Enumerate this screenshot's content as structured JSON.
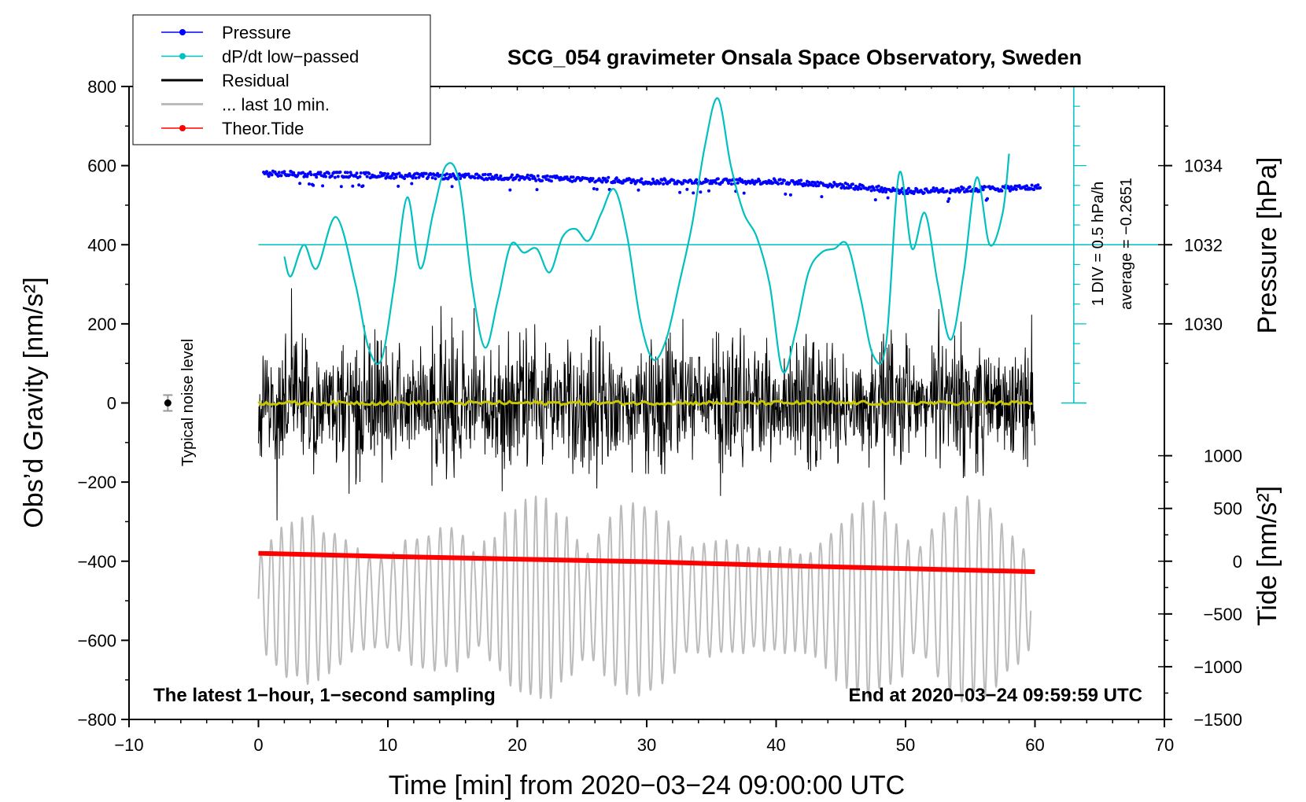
{
  "chart_data": {
    "type": "line",
    "title": "SCG_054 gravimeter Onsala Space Observatory, Sweden",
    "xlabel": "Time [min] from 2020−03−24 09:00:00 UTC",
    "ylabel_left": "Obs’d Gravity [nm/s²]",
    "ylabel_right_pressure": "Pressure [hPa]",
    "ylabel_right_tide": "Tide [nm/s²]",
    "xlim": [
      -10,
      70
    ],
    "ylim": [
      -800,
      800
    ],
    "x_ticks": [
      -10,
      0,
      10,
      20,
      30,
      40,
      50,
      60,
      70
    ],
    "x_tick_labels": [
      "−10",
      "0",
      "10",
      "20",
      "30",
      "40",
      "50",
      "60",
      "70"
    ],
    "y_ticks": [
      -800,
      -600,
      -400,
      -200,
      0,
      200,
      400,
      600,
      800
    ],
    "y_tick_labels": [
      "−800",
      "−600",
      "−400",
      "−200",
      "0",
      "200",
      "400",
      "600",
      "800"
    ],
    "pressure_axis": {
      "gravity_at_1032": 400,
      "hpa_per_200": 2,
      "ticks": [
        1030,
        1032,
        1034
      ],
      "tick_labels": [
        "1030",
        "1032",
        "1034"
      ]
    },
    "tide_axis": {
      "gravity_at_zero": -400,
      "tide_per_gravity": 3.75,
      "ticks": [
        -1500,
        -1000,
        -500,
        0,
        500,
        1000
      ],
      "tick_labels": [
        "−1500",
        "−1000",
        "−500",
        "0",
        "500",
        "1000"
      ]
    },
    "dpdt_scale": {
      "label_div": "1 DIV = 0.5 hPa/h",
      "label_avg": "average = −0.2651",
      "baseline_gravity": 400,
      "x_position": 63
    },
    "legend": [
      {
        "name": "Pressure",
        "color": "#0000ff",
        "marker": true
      },
      {
        "name": "dP/dt low−passed",
        "color": "#00c0c0",
        "marker": true
      },
      {
        "name": "Residual",
        "color": "#000000",
        "marker": false
      },
      {
        "name": "... last 10 min.",
        "color": "#bbbbbb",
        "marker": false
      },
      {
        "name": "Theor.Tide",
        "color": "#ff0000",
        "marker": true
      }
    ],
    "series": [
      {
        "name": "Pressure",
        "unit": "hPa",
        "color": "#0000ff",
        "x": [
          0,
          10,
          20,
          30,
          40,
          45,
          50,
          55,
          60
        ],
        "values": [
          1033.8,
          1033.75,
          1033.7,
          1033.6,
          1033.6,
          1033.5,
          1033.35,
          1033.4,
          1033.45
        ]
      },
      {
        "name": "dP/dt low−passed",
        "unit": "gravity-units",
        "color": "#00c0c0",
        "x": [
          2,
          2.5,
          3.5,
          4.5,
          6,
          7.5,
          8.5,
          9.5,
          10.5,
          11.5,
          12.5,
          13.5,
          14.5,
          15.5,
          16.5,
          17.5,
          18.5,
          19.5,
          20.5,
          21.5,
          22.5,
          23.5,
          24.5,
          25.5,
          26.5,
          27.5,
          28.5,
          29.5,
          30.5,
          31.5,
          32.5,
          33.5,
          34.5,
          35.5,
          36.5,
          37.5,
          38.5,
          39.5,
          40.5,
          41.5,
          42.5,
          43.5,
          44.5,
          45.5,
          46.5,
          47.5,
          48.5,
          49.5,
          50.5,
          51.5,
          52.5,
          53.5,
          54.5,
          55.5,
          56.5,
          57.5,
          58
        ],
        "values": [
          370,
          320,
          400,
          340,
          470,
          300,
          140,
          110,
          300,
          520,
          340,
          480,
          600,
          560,
          300,
          140,
          260,
          400,
          380,
          390,
          330,
          420,
          440,
          410,
          480,
          540,
          420,
          210,
          110,
          160,
          300,
          450,
          650,
          770,
          600,
          480,
          420,
          300,
          80,
          180,
          330,
          380,
          390,
          400,
          270,
          120,
          150,
          580,
          390,
          480,
          300,
          160,
          330,
          570,
          400,
          480,
          630
        ]
      },
      {
        "name": "Residual",
        "unit": "nm/s²",
        "color": "#000000",
        "x": [
          0,
          10,
          20,
          30,
          40,
          50,
          60
        ],
        "values": [
          0,
          0,
          0,
          0,
          0,
          0,
          0
        ],
        "amplitude_range": [
          -340,
          290
        ]
      },
      {
        "name": "... last 10 min.",
        "unit": "nm/s²",
        "color": "#bbbbbb",
        "x": [
          0,
          10,
          20,
          30,
          40,
          50,
          60
        ],
        "values": [
          -500,
          -500,
          -500,
          -500,
          -500,
          -500,
          -500
        ],
        "amplitude_range": [
          -740,
          -230
        ]
      },
      {
        "name": "Theor.Tide",
        "unit": "nm/s²",
        "color": "#ff0000",
        "x": [
          0,
          10,
          20,
          30,
          40,
          50,
          60
        ],
        "values": [
          75,
          45,
          20,
          -5,
          -40,
          -70,
          -100
        ]
      }
    ],
    "noise_level": {
      "x": -7,
      "value": 0,
      "error": 20,
      "label": "Typical noise level"
    },
    "annotations": {
      "bottom_left": "The latest 1−hour, 1−second sampling",
      "bottom_right": "End at 2020−03−24 09:59:59 UTC"
    }
  }
}
